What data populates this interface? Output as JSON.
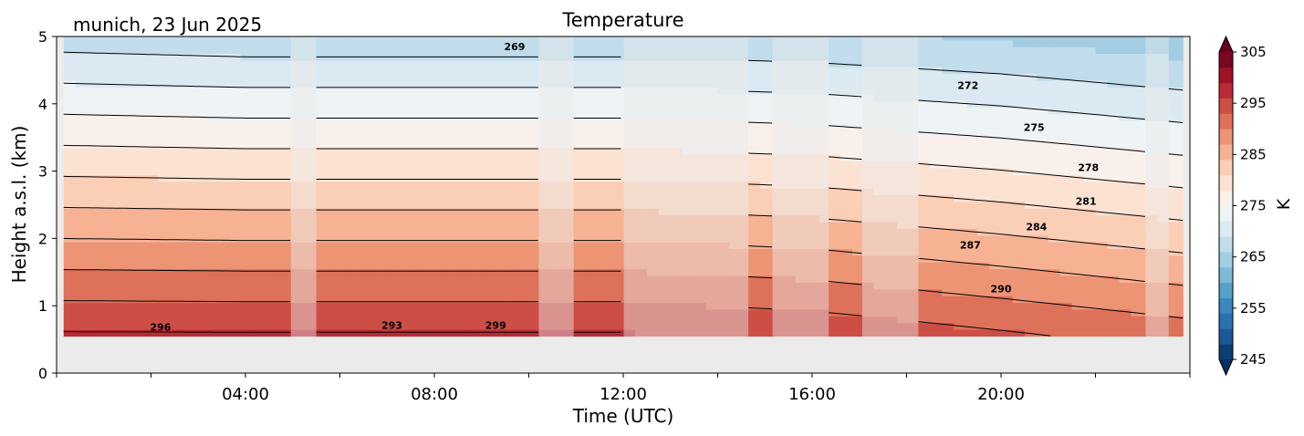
{
  "chart_data": {
    "type": "heatmap",
    "title": "Temperature",
    "subtitle": "munich, 23 Jun 2025",
    "xlabel": "Time (UTC)",
    "ylabel": "Height a.s.l. (km)",
    "xlim": [
      "00:00",
      "24:00"
    ],
    "ylim": [
      0,
      5
    ],
    "x_ticks": [
      "04:00",
      "08:00",
      "12:00",
      "16:00",
      "20:00"
    ],
    "y_ticks": [
      "0",
      "1",
      "2",
      "3",
      "4",
      "5"
    ],
    "colorbar": {
      "label": "K",
      "range": [
        245,
        305
      ],
      "ticks": [
        "245",
        "255",
        "265",
        "275",
        "285",
        "295",
        "305"
      ],
      "colormap": "RdBu_r",
      "extend": "both"
    },
    "data_bottom_km": 0.55,
    "segments": [
      {
        "start_h": 0.15,
        "end_h": 4.95,
        "measured": true
      },
      {
        "start_h": 4.95,
        "end_h": 5.5,
        "measured": false
      },
      {
        "start_h": 5.5,
        "end_h": 10.2,
        "measured": true
      },
      {
        "start_h": 10.2,
        "end_h": 10.95,
        "measured": false
      },
      {
        "start_h": 10.95,
        "end_h": 12.0,
        "measured": true
      },
      {
        "start_h": 12.0,
        "end_h": 14.65,
        "measured": false
      },
      {
        "start_h": 14.65,
        "end_h": 15.15,
        "measured": true
      },
      {
        "start_h": 15.15,
        "end_h": 16.35,
        "measured": false
      },
      {
        "start_h": 16.35,
        "end_h": 17.05,
        "measured": true
      },
      {
        "start_h": 17.05,
        "end_h": 18.25,
        "measured": false
      },
      {
        "start_h": 18.25,
        "end_h": 23.05,
        "measured": true
      },
      {
        "start_h": 23.05,
        "end_h": 23.55,
        "measured": false
      },
      {
        "start_h": 23.55,
        "end_h": 23.85,
        "measured": true
      }
    ],
    "profiles": [
      {
        "time_h": 0,
        "surface_K": 300,
        "lapse_K_per_km": 6.5
      },
      {
        "time_h": 4,
        "surface_K": 300,
        "lapse_K_per_km": 6.6
      },
      {
        "time_h": 8,
        "surface_K": 300,
        "lapse_K_per_km": 6.6
      },
      {
        "time_h": 12,
        "surface_K": 300,
        "lapse_K_per_km": 6.6
      },
      {
        "time_h": 16,
        "surface_K": 299,
        "lapse_K_per_km": 6.5
      },
      {
        "time_h": 20,
        "surface_K": 297,
        "lapse_K_per_km": 6.3
      },
      {
        "time_h": 24,
        "surface_K": 295,
        "lapse_K_per_km": 6.2
      }
    ],
    "contour_levels": [
      269,
      272,
      275,
      278,
      281,
      284,
      287,
      290,
      293,
      296,
      299
    ],
    "contour_labels": [
      {
        "text": "269",
        "time_h": 9.7,
        "height_km": 4.8
      },
      {
        "text": "272",
        "time_h": 19.3,
        "height_km": 4.22
      },
      {
        "text": "275",
        "time_h": 20.7,
        "height_km": 3.6
      },
      {
        "text": "278",
        "time_h": 21.85,
        "height_km": 3.0
      },
      {
        "text": "281",
        "time_h": 21.8,
        "height_km": 2.5
      },
      {
        "text": "284",
        "time_h": 20.75,
        "height_km": 2.12
      },
      {
        "text": "287",
        "time_h": 19.35,
        "height_km": 1.85
      },
      {
        "text": "290",
        "time_h": 20.0,
        "height_km": 1.2
      },
      {
        "text": "296",
        "time_h": 2.2,
        "height_km": 0.63
      },
      {
        "text": "293",
        "time_h": 7.1,
        "height_km": 0.66
      },
      {
        "text": "299",
        "time_h": 9.3,
        "height_km": 0.66
      }
    ]
  }
}
